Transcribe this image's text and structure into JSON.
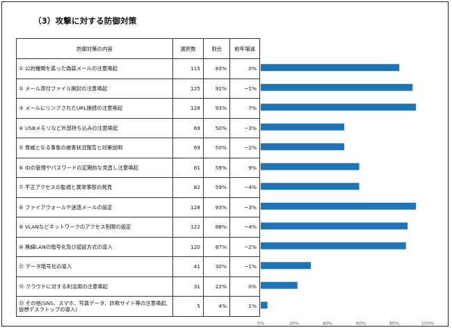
{
  "title": "（3）攻撃に対する防御対策",
  "table": {
    "headers": [
      "防御対策の内容",
      "選択数",
      "割合",
      "前年増減"
    ],
    "rows": [
      {
        "item": "① 公的機関を装った偽装メールの注意喚起",
        "count": "115",
        "pct": "83%",
        "change": "0%"
      },
      {
        "item": "② メール添付ファイル開封の注意喚起",
        "count": "125",
        "pct": "91%",
        "change": "−1%"
      },
      {
        "item": "③ メールにリンクされたURL接続の注意喚起",
        "count": "128",
        "pct": "93%",
        "change": "7%"
      },
      {
        "item": "④ USBメモリなど外部持ち込みの注意喚起",
        "count": "69",
        "pct": "50%",
        "change": "−3%"
      },
      {
        "item": "⑤ 脅威となる事象の被害状況報告と対策説明",
        "count": "69",
        "pct": "50%",
        "change": "−2%"
      },
      {
        "item": "⑥ IDの管理やパスワードの定期的な見直し注意喚起",
        "count": "81",
        "pct": "59%",
        "change": "9%"
      },
      {
        "item": "⑦ 不正アクセスの監視と異常事態の発見",
        "count": "82",
        "pct": "59%",
        "change": "−4%"
      },
      {
        "item": "⑧ ファイアウォールや迷惑メールの設定",
        "count": "128",
        "pct": "93%",
        "change": "−3%"
      },
      {
        "item": "⑨ VLANなどネットワークのアクセス制限の設定",
        "count": "122",
        "pct": "88%",
        "change": "−4%"
      },
      {
        "item": "⑩ 無線LANの暗号化及び認証方式の導入",
        "count": "120",
        "pct": "87%",
        "change": "−2%"
      },
      {
        "item": "⑪ データ暗号化の導入",
        "count": "41",
        "pct": "30%",
        "change": "−1%"
      },
      {
        "item": "⑫ クラウドに対する利活用の注意喚起",
        "count": "31",
        "pct": "22%",
        "change": "0%"
      },
      {
        "item": "⑬ その他(SNS、スマホ、写真データ、詐欺サイト等の注意喚起,仮想デスクトップの導入)",
        "count": "5",
        "pct": "4%",
        "change": "1%"
      }
    ]
  },
  "chart_data": {
    "type": "bar",
    "orientation": "horizontal",
    "categories": [
      "①",
      "②",
      "③",
      "④",
      "⑤",
      "⑥",
      "⑦",
      "⑧",
      "⑨",
      "⑩",
      "⑪",
      "⑫",
      "⑬"
    ],
    "values": [
      83,
      91,
      93,
      50,
      50,
      59,
      59,
      93,
      88,
      87,
      30,
      22,
      4
    ],
    "xlim": [
      0,
      100
    ],
    "xticks": [
      "0%",
      "20%",
      "40%",
      "60%",
      "80%",
      "100%"
    ],
    "bar_color": "#1f74b5",
    "grid": false
  }
}
